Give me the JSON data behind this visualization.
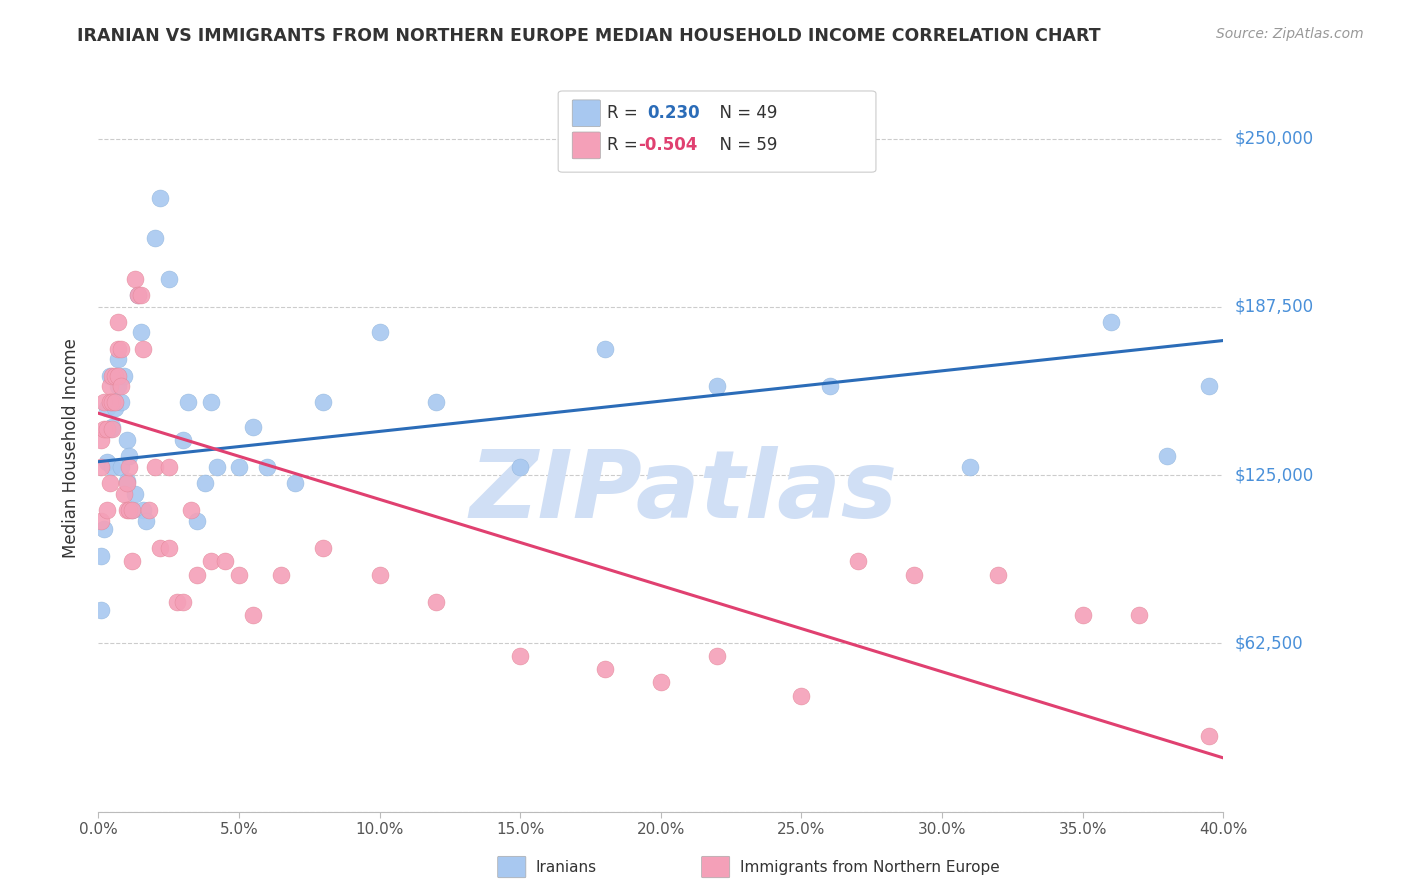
{
  "title": "IRANIAN VS IMMIGRANTS FROM NORTHERN EUROPE MEDIAN HOUSEHOLD INCOME CORRELATION CHART",
  "source": "Source: ZipAtlas.com",
  "ylabel": "Median Household Income",
  "yticks": [
    0,
    62500,
    125000,
    187500,
    250000
  ],
  "ytick_labels": [
    "",
    "$62,500",
    "$125,000",
    "$187,500",
    "$250,000"
  ],
  "ylim": [
    0,
    270000
  ],
  "xlim": [
    0.0,
    0.4
  ],
  "legend_blue_R": "0.230",
  "legend_blue_N": "49",
  "legend_pink_R": "-0.504",
  "legend_pink_N": "59",
  "legend_blue_label": "Iranians",
  "legend_pink_label": "Immigrants from Northern Europe",
  "blue_color": "#A8C8F0",
  "pink_color": "#F4A0B8",
  "blue_line_color": "#2B6CB8",
  "pink_line_color": "#E04070",
  "watermark": "ZIPatlas",
  "watermark_color": "#D0DFF5",
  "background_color": "#FFFFFF",
  "title_color": "#333333",
  "source_color": "#999999",
  "ylabel_color": "#333333",
  "xtick_color": "#555555",
  "ytick_right_color": "#4A90D9",
  "grid_color": "#CCCCCC",
  "blue_scatter_x": [
    0.001,
    0.001,
    0.002,
    0.003,
    0.003,
    0.004,
    0.004,
    0.005,
    0.005,
    0.006,
    0.006,
    0.007,
    0.007,
    0.008,
    0.008,
    0.009,
    0.01,
    0.01,
    0.011,
    0.012,
    0.013,
    0.014,
    0.015,
    0.016,
    0.017,
    0.02,
    0.022,
    0.025,
    0.03,
    0.032,
    0.035,
    0.038,
    0.04,
    0.042,
    0.05,
    0.055,
    0.06,
    0.07,
    0.08,
    0.1,
    0.12,
    0.15,
    0.18,
    0.22,
    0.26,
    0.31,
    0.36,
    0.38,
    0.395
  ],
  "blue_scatter_y": [
    95000,
    75000,
    105000,
    150000,
    130000,
    162000,
    142000,
    143000,
    128000,
    152000,
    150000,
    168000,
    158000,
    152000,
    128000,
    162000,
    138000,
    123000,
    132000,
    112000,
    118000,
    192000,
    178000,
    112000,
    108000,
    213000,
    228000,
    198000,
    138000,
    152000,
    108000,
    122000,
    152000,
    128000,
    128000,
    143000,
    128000,
    122000,
    152000,
    178000,
    152000,
    128000,
    172000,
    158000,
    158000,
    128000,
    182000,
    132000,
    158000
  ],
  "pink_scatter_x": [
    0.001,
    0.001,
    0.001,
    0.002,
    0.002,
    0.003,
    0.003,
    0.004,
    0.004,
    0.004,
    0.005,
    0.005,
    0.005,
    0.006,
    0.006,
    0.007,
    0.007,
    0.007,
    0.008,
    0.008,
    0.009,
    0.01,
    0.01,
    0.011,
    0.011,
    0.012,
    0.012,
    0.013,
    0.014,
    0.015,
    0.016,
    0.018,
    0.02,
    0.022,
    0.025,
    0.025,
    0.028,
    0.03,
    0.033,
    0.035,
    0.04,
    0.045,
    0.05,
    0.055,
    0.065,
    0.08,
    0.1,
    0.12,
    0.15,
    0.18,
    0.2,
    0.22,
    0.25,
    0.27,
    0.29,
    0.32,
    0.35,
    0.37,
    0.395
  ],
  "pink_scatter_y": [
    108000,
    128000,
    138000,
    142000,
    152000,
    112000,
    142000,
    122000,
    158000,
    152000,
    142000,
    152000,
    162000,
    152000,
    162000,
    162000,
    172000,
    182000,
    172000,
    158000,
    118000,
    112000,
    122000,
    112000,
    128000,
    93000,
    112000,
    198000,
    192000,
    192000,
    172000,
    112000,
    128000,
    98000,
    128000,
    98000,
    78000,
    78000,
    112000,
    88000,
    93000,
    93000,
    88000,
    73000,
    88000,
    98000,
    88000,
    78000,
    58000,
    53000,
    48000,
    58000,
    43000,
    93000,
    88000,
    88000,
    73000,
    73000,
    28000
  ]
}
